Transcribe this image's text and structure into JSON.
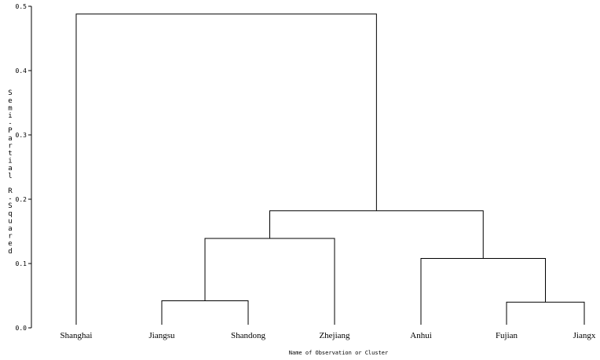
{
  "chart_data": {
    "type": "dendrogram",
    "leaves": [
      "Shanghai",
      "Jiangsu",
      "Shandong",
      "Zhejiang",
      "Anhui",
      "Fujian",
      "Jiangx"
    ],
    "merges": [
      {
        "name": "C1",
        "left": "Jiangsu",
        "right": "Shandong",
        "height": 0.042
      },
      {
        "name": "C2",
        "left": "Fujian",
        "right": "Jiangx",
        "height": 0.04
      },
      {
        "name": "C3",
        "left": "Anhui",
        "right": "C2",
        "height": 0.108
      },
      {
        "name": "C4",
        "left": "C1",
        "right": "Zhejiang",
        "height": 0.139
      },
      {
        "name": "C5",
        "left": "C4",
        "right": "C3",
        "height": 0.182
      },
      {
        "name": "C6",
        "left": "Shanghai",
        "right": "C5",
        "height": 0.488
      }
    ],
    "xlabel": "Name of Observation or Cluster",
    "ylabel": "Semi-Partial R-Squared",
    "ylim": [
      0,
      0.5
    ],
    "yticks": [
      "0.0",
      "0.1",
      "0.2",
      "0.3",
      "0.4",
      "0.5"
    ],
    "grid": false
  }
}
